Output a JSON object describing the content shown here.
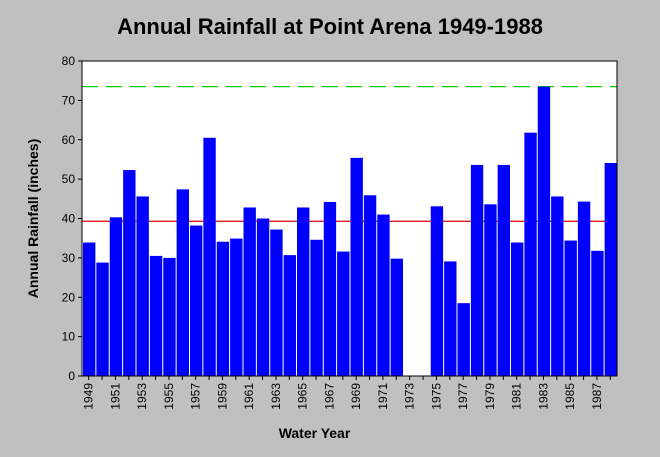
{
  "chart_data": {
    "type": "bar",
    "title": "Annual Rainfall at Point Arena 1949-1988",
    "xlabel": "Water Year",
    "ylabel": "Annual Rainfall (inches)",
    "ylim": [
      0,
      80
    ],
    "yticks": [
      0,
      10,
      20,
      30,
      40,
      50,
      60,
      70,
      80
    ],
    "x_tick_labels": [
      "1949",
      "1951",
      "1953",
      "1955",
      "1957",
      "1959",
      "1961",
      "1963",
      "1965",
      "1967",
      "1969",
      "1971",
      "1973",
      "1975",
      "1977",
      "1979",
      "1981",
      "1983",
      "1985",
      "1987"
    ],
    "categories": [
      "1949",
      "1950",
      "1951",
      "1952",
      "1953",
      "1954",
      "1955",
      "1956",
      "1957",
      "1958",
      "1959",
      "1960",
      "1961",
      "1962",
      "1963",
      "1964",
      "1965",
      "1966",
      "1967",
      "1968",
      "1969",
      "1970",
      "1971",
      "1972",
      "1973",
      "1974",
      "1975",
      "1976",
      "1977",
      "1978",
      "1979",
      "1980",
      "1981",
      "1982",
      "1983",
      "1984",
      "1985",
      "1986",
      "1987",
      "1988"
    ],
    "values": [
      33.9,
      28.8,
      40.3,
      52.3,
      45.6,
      30.5,
      30.0,
      47.4,
      38.2,
      60.5,
      34.1,
      34.9,
      42.8,
      40.0,
      37.2,
      30.7,
      42.8,
      34.6,
      44.2,
      31.6,
      55.4,
      45.9,
      41.0,
      29.8,
      null,
      null,
      43.1,
      29.1,
      18.5,
      53.6,
      43.6,
      53.6,
      33.9,
      61.8,
      73.5,
      45.6,
      34.4,
      44.3,
      31.8,
      54.1
    ],
    "reference_lines": [
      {
        "value": 73.5,
        "color": "#00cc00",
        "style": "dashed"
      },
      {
        "value": 39.3,
        "color": "#dd0000",
        "style": "solid"
      }
    ],
    "bar_color": "#0000ff",
    "grid": false,
    "legend": "none"
  }
}
